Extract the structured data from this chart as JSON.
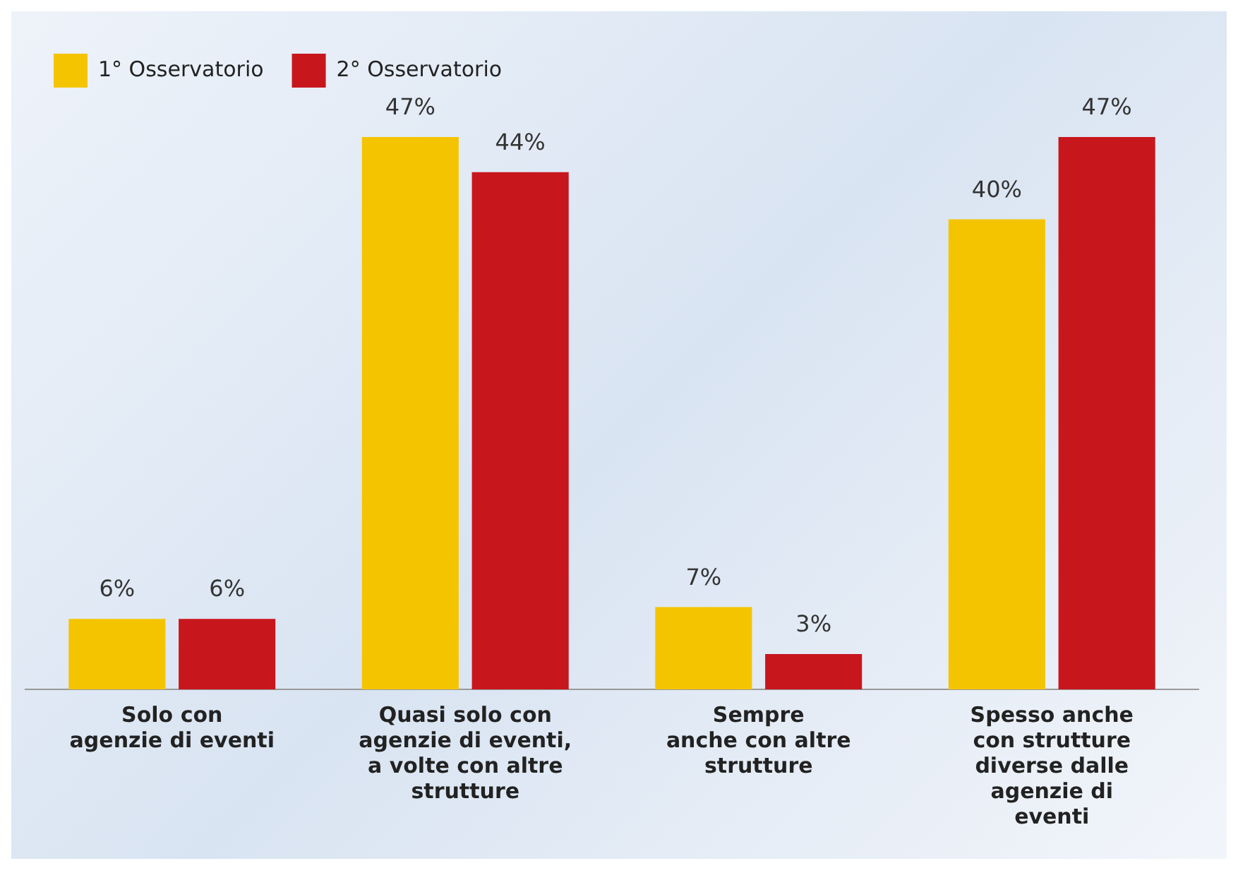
{
  "chart_data": {
    "type": "bar",
    "categories": [
      "Solo con\nagenzie di eventi",
      "Quasi solo con\nagenzie di eventi,\na volte con altre\nstrutture",
      "Sempre\nanche con altre\nstrutture",
      "Spesso anche\ncon strutture\ndiverse dalle\nagenzie di\neventi"
    ],
    "series": [
      {
        "name": "1° Osservatorio",
        "color": "#f5c400",
        "values": [
          6,
          47,
          7,
          40
        ],
        "value_labels": [
          "6%",
          "47%",
          "7%",
          "40%"
        ]
      },
      {
        "name": "2° Osservatorio",
        "color": "#c8161d",
        "values": [
          6,
          44,
          3,
          47
        ],
        "value_labels": [
          "6%",
          "44%",
          "3%",
          "47%"
        ]
      }
    ],
    "legend": "top left",
    "grid": false
  }
}
